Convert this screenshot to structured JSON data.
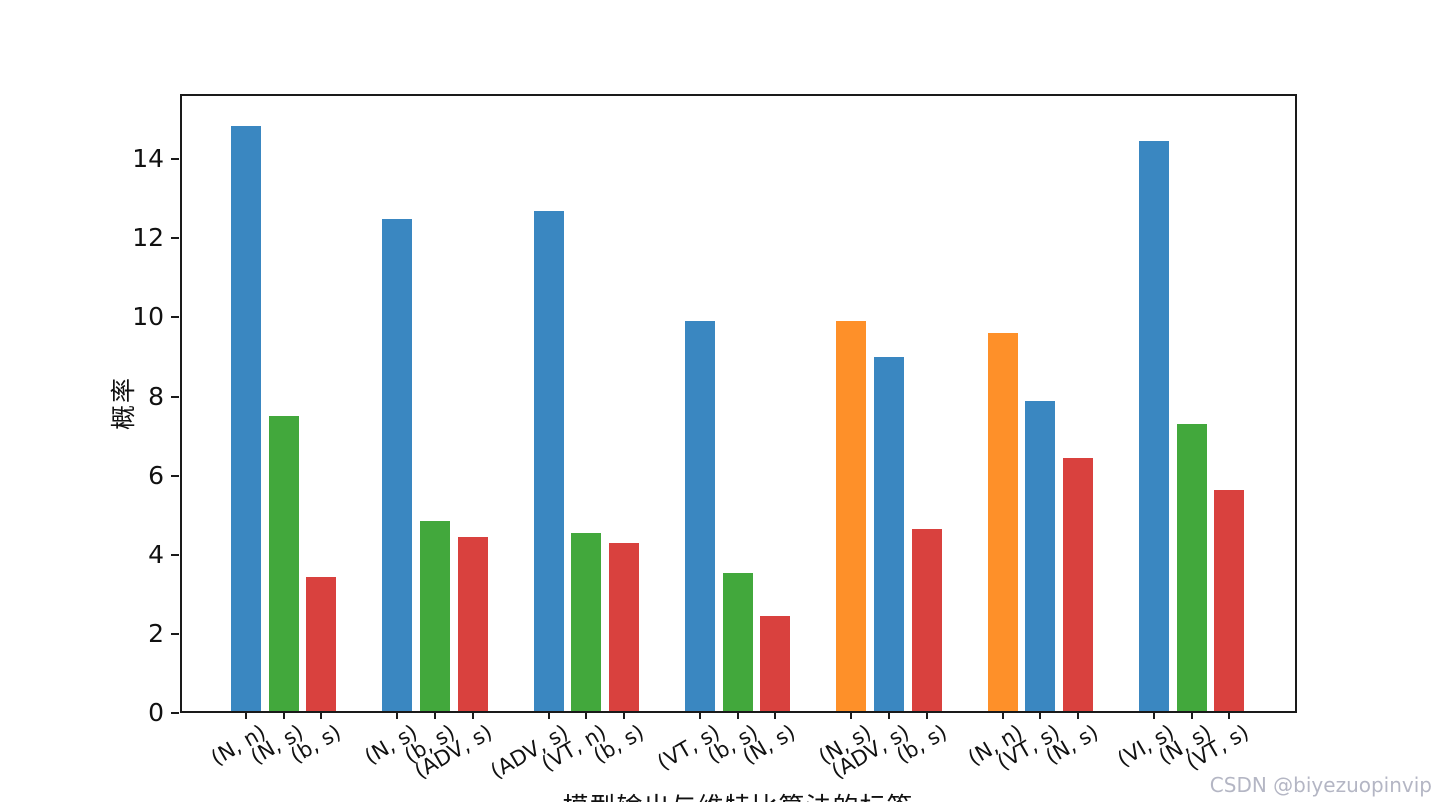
{
  "watermark": {
    "text": "CSDN @biyezuopinvip",
    "color": "#b4b6c4"
  },
  "chart_data": {
    "type": "bar",
    "title": "",
    "xlabel": "模型输出与维特比算法的标签",
    "ylabel": "概率",
    "ylim": [
      0,
      15.65
    ],
    "yticks": [
      0,
      2,
      4,
      6,
      8,
      10,
      12,
      14
    ],
    "grid": false,
    "legend": "none",
    "groups": 7,
    "bars_per_group": 3,
    "colors": {
      "blue": "#3a87c1",
      "green": "#42a83c",
      "red": "#d9413e",
      "orange": "#fe9029"
    },
    "bars": [
      {
        "label": "(N, n)",
        "value": 14.85,
        "color": "blue"
      },
      {
        "label": "(N, s)",
        "value": 7.5,
        "color": "green"
      },
      {
        "label": "(b, s)",
        "value": 3.45,
        "color": "red"
      },
      {
        "label": "(N, s)",
        "value": 12.5,
        "color": "blue"
      },
      {
        "label": "(b, s)",
        "value": 4.85,
        "color": "green"
      },
      {
        "label": "(ADV, s)",
        "value": 4.45,
        "color": "red"
      },
      {
        "label": "(ADV, s)",
        "value": 12.7,
        "color": "blue"
      },
      {
        "label": "(VT, n)",
        "value": 4.55,
        "color": "green"
      },
      {
        "label": "(b, s)",
        "value": 4.3,
        "color": "red"
      },
      {
        "label": "(VT, s)",
        "value": 9.9,
        "color": "blue"
      },
      {
        "label": "(b, s)",
        "value": 3.55,
        "color": "green"
      },
      {
        "label": "(N, s)",
        "value": 2.45,
        "color": "red"
      },
      {
        "label": "(N, s)",
        "value": 9.9,
        "color": "orange"
      },
      {
        "label": "(ADV, s)",
        "value": 9.0,
        "color": "blue"
      },
      {
        "label": "(b, s)",
        "value": 4.65,
        "color": "red"
      },
      {
        "label": "(N, n)",
        "value": 9.6,
        "color": "orange"
      },
      {
        "label": "(VT, s)",
        "value": 7.9,
        "color": "blue"
      },
      {
        "label": "(N, s)",
        "value": 6.45,
        "color": "red"
      },
      {
        "label": "(VI, s)",
        "value": 14.45,
        "color": "blue"
      },
      {
        "label": "(N, s)",
        "value": 7.3,
        "color": "green"
      },
      {
        "label": "(VT, s)",
        "value": 5.65,
        "color": "red"
      }
    ]
  }
}
